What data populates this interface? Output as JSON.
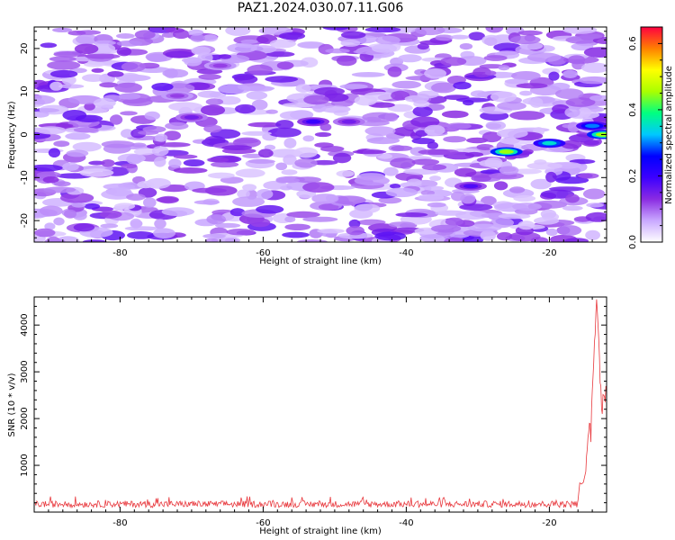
{
  "figure_title": "PAZ1.2024.030.07.11.G06",
  "chart_data": [
    {
      "type": "heatmap",
      "title": "PAZ1.2024.030.07.11.G06",
      "xlabel": "Height of straight line (km)",
      "ylabel": "Frequency (Hz)",
      "xlim": [
        -92,
        -12
      ],
      "ylim": [
        -25,
        25
      ],
      "xticks": [
        -80,
        -60,
        -40,
        -20
      ],
      "yticks": [
        -20,
        -10,
        0,
        10,
        20
      ],
      "colorbar": {
        "label": "Normalized spectral amplitude",
        "range": [
          0.0,
          0.65
        ],
        "ticks": [
          0.0,
          0.2,
          0.4,
          0.6
        ],
        "colormap": [
          "#ffffff",
          "#c9a8ff",
          "#8a2be2",
          "#3c00ff",
          "#0000ff",
          "#00c8ff",
          "#00ff80",
          "#aaff00",
          "#ffff00",
          "#ff8000",
          "#ff0040"
        ]
      },
      "hotspots": [
        {
          "x": -26,
          "y": -4,
          "value": 0.45
        },
        {
          "x": -20,
          "y": -2,
          "value": 0.35
        },
        {
          "x": -14,
          "y": 2,
          "value": 0.3
        },
        {
          "x": -12.5,
          "y": 0,
          "value": 0.45
        },
        {
          "x": -53,
          "y": 3,
          "value": 0.2
        },
        {
          "x": -31,
          "y": -12,
          "value": 0.18
        },
        {
          "x": -70,
          "y": 4,
          "value": 0.15
        },
        {
          "x": -66,
          "y": 16,
          "value": 0.12
        },
        {
          "x": -72,
          "y": 9,
          "value": 0.12
        },
        {
          "x": -48,
          "y": 3,
          "value": 0.15
        }
      ],
      "grid": false
    },
    {
      "type": "line",
      "xlabel": "Height of straight line (km)",
      "ylabel": "SNR (10 * v/v)",
      "xlim": [
        -92,
        -12
      ],
      "ylim": [
        0,
        4600
      ],
      "xticks": [
        -80,
        -60,
        -40,
        -20
      ],
      "yticks": [
        1000,
        2000,
        3000,
        4000
      ],
      "series": [
        {
          "color": "#e8383d",
          "baseline_noise": [
            100,
            300
          ],
          "x": [
            -16,
            -15.5,
            -15,
            -14.8,
            -14.6,
            -14.4,
            -14.2,
            -14.0,
            -13.8,
            -13.6,
            -13.4,
            -13.2,
            -13.0,
            -12.8,
            -12.6,
            -12.4,
            -12.2,
            -12.0
          ],
          "y": [
            250,
            600,
            800,
            1200,
            1600,
            1900,
            1500,
            2600,
            3200,
            3800,
            4550,
            4000,
            3300,
            2700,
            2100,
            2500,
            2350,
            2600
          ]
        }
      ],
      "grid": false
    }
  ]
}
